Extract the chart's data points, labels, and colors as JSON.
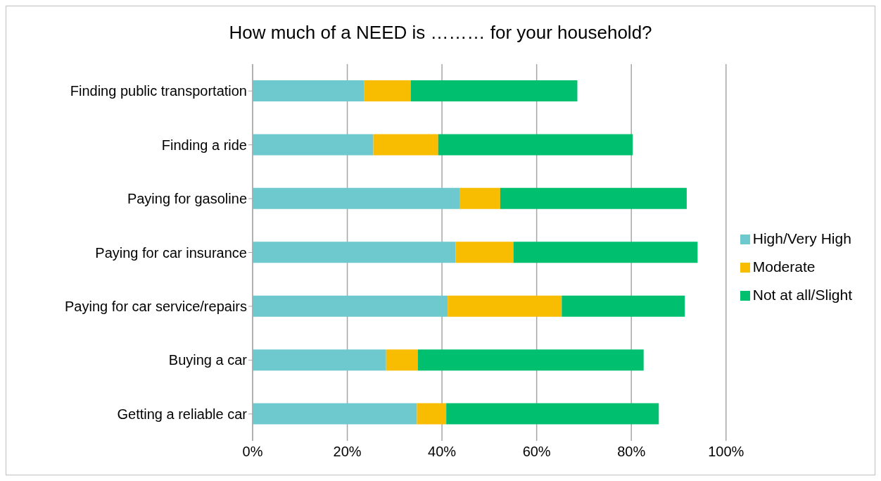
{
  "chart_data": {
    "type": "bar",
    "orientation": "horizontal",
    "stacked": true,
    "title": "How much of a NEED is ……… for your household?",
    "categories": [
      "Finding public transportation",
      "Finding a ride",
      "Paying for gasoline",
      "Paying for car insurance",
      "Paying for car service/repairs",
      "Buying a car",
      "Getting a reliable car"
    ],
    "series": [
      {
        "name": "High/Very High",
        "color": "#6ec9cf",
        "values": [
          23.5,
          25.5,
          43.7,
          42.9,
          41.2,
          28.2,
          34.7
        ]
      },
      {
        "name": "Moderate",
        "color": "#f8bc00",
        "values": [
          9.9,
          13.7,
          8.6,
          12.2,
          24.1,
          6.7,
          6.2
        ]
      },
      {
        "name": "Not at all/Slight",
        "color": "#00c06f",
        "values": [
          35.2,
          41.1,
          39.4,
          38.9,
          26.0,
          47.7,
          44.9
        ]
      }
    ],
    "xlim": [
      0,
      100
    ],
    "xticks": [
      {
        "value": 0,
        "label": "0%"
      },
      {
        "value": 20,
        "label": "20%"
      },
      {
        "value": 40,
        "label": "40%"
      },
      {
        "value": 60,
        "label": "60%"
      },
      {
        "value": 80,
        "label": "80%"
      },
      {
        "value": 100,
        "label": "100%"
      }
    ],
    "grid": "x",
    "legend": "right"
  }
}
